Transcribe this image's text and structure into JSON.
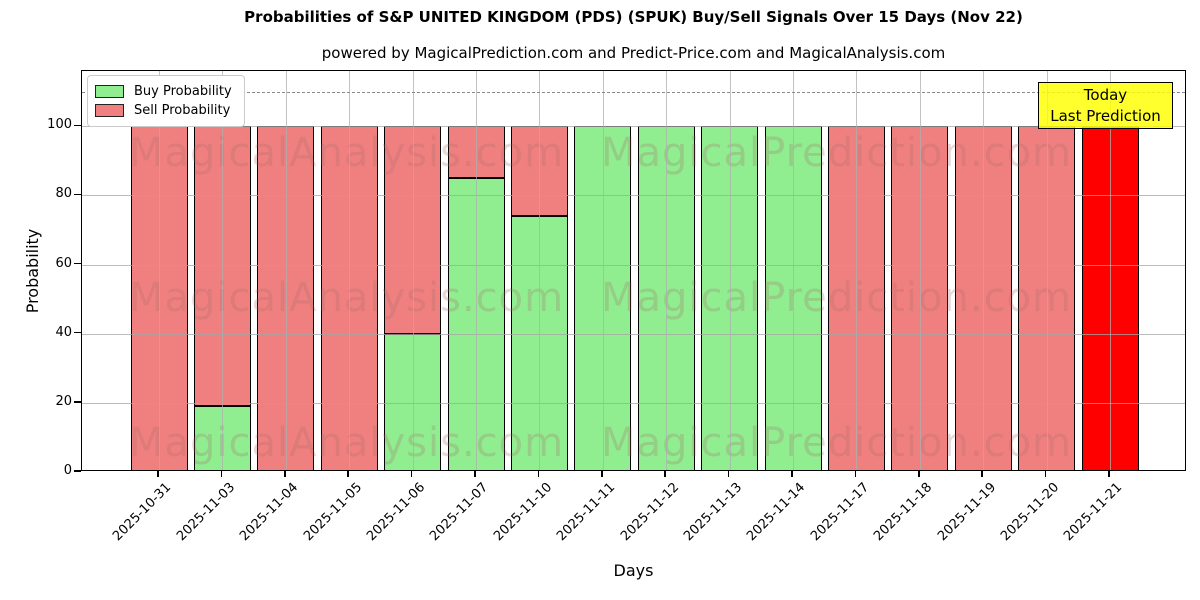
{
  "header": {
    "title": "Probabilities of S&P UNITED KINGDOM (PDS) (SPUK) Buy/Sell Signals Over 15 Days (Nov 22)",
    "subtitle": "powered by MagicalPrediction.com and Predict-Price.com and MagicalAnalysis.com"
  },
  "legend": {
    "items": [
      {
        "label": "Buy Probability",
        "color": "#90ee90"
      },
      {
        "label": "Sell Probability",
        "color": "#f08080"
      }
    ]
  },
  "annotation": {
    "today_box": {
      "lines": [
        "Today",
        "Last Prediction"
      ],
      "bg_color": "#ffff00"
    }
  },
  "watermarks": {
    "left_text": "MagicalAnalysis.com",
    "right_text": "MagicalPrediction.com"
  },
  "chart_data": {
    "type": "bar",
    "stacked": true,
    "title": "Probabilities of S&P UNITED KINGDOM (PDS) (SPUK) Buy/Sell Signals Over 15 Days (Nov 22)",
    "xlabel": "Days",
    "ylabel": "Probability",
    "categories": [
      "2025-10-31",
      "2025-11-03",
      "2025-11-04",
      "2025-11-05",
      "2025-11-06",
      "2025-11-07",
      "2025-11-10",
      "2025-11-11",
      "2025-11-12",
      "2025-11-13",
      "2025-11-14",
      "2025-11-17",
      "2025-11-18",
      "2025-11-19",
      "2025-11-20",
      "2025-11-21"
    ],
    "series": [
      {
        "name": "Buy Probability",
        "color": "#90ee90",
        "values": [
          0,
          19,
          0,
          0,
          40,
          85,
          74,
          100,
          100,
          100,
          100,
          0,
          0,
          0,
          0,
          0
        ]
      },
      {
        "name": "Sell Probability",
        "color": "#f08080",
        "values": [
          100,
          81,
          100,
          100,
          60,
          15,
          26,
          0,
          0,
          0,
          0,
          100,
          100,
          100,
          100,
          100
        ]
      }
    ],
    "last_bar_sell_color": "#ff0000",
    "bar_edge_color": "#000000",
    "yticks": [
      0,
      20,
      40,
      60,
      80,
      100
    ],
    "ylim": [
      0,
      116
    ],
    "dashed_line_y": 110,
    "grid": true,
    "legend_position": "upper left"
  }
}
